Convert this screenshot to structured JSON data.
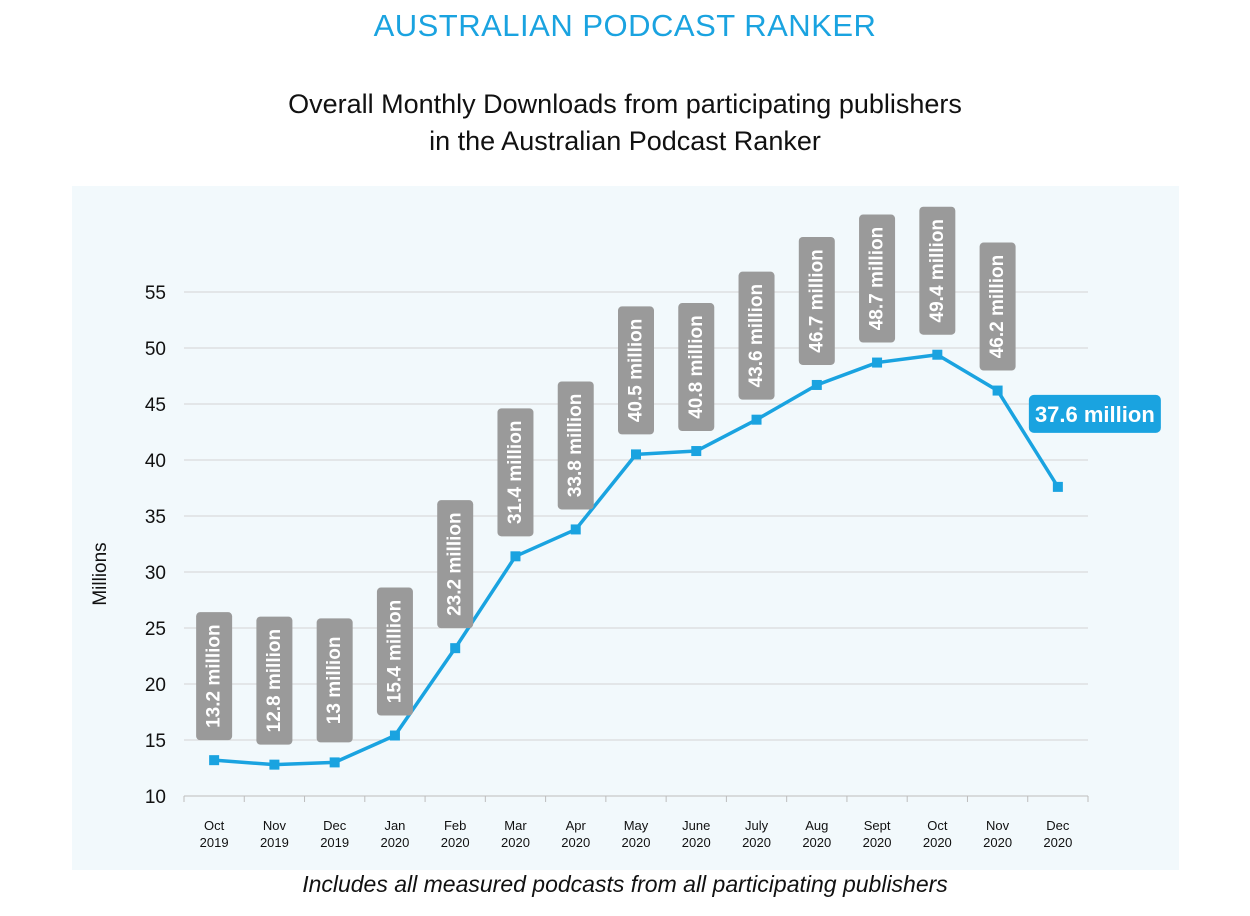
{
  "header": {
    "brand": "AUSTRALIAN PODCAST RANKER",
    "subtitle_line1": "Overall Monthly Downloads from participating publishers",
    "subtitle_line2": "in the Australian Podcast Ranker"
  },
  "footnote": "Includes all measured podcasts from all participating publishers",
  "colors": {
    "line": "#1aa3e0",
    "label_box": "#9a9a9a",
    "highlight_box": "#1aa3e0",
    "panel_bg": "#f2f9fc",
    "grid": "#d4d4d4"
  },
  "chart_data": {
    "type": "line",
    "title": "Overall Monthly Downloads from participating publishers in the Australian Podcast Ranker",
    "ylabel": "Millions",
    "xlabel": "",
    "ylim": [
      10,
      55
    ],
    "yticks": [
      10,
      15,
      20,
      25,
      30,
      35,
      40,
      45,
      50,
      55
    ],
    "grid": true,
    "categories": [
      [
        "Oct",
        "2019"
      ],
      [
        "Nov",
        "2019"
      ],
      [
        "Dec",
        "2019"
      ],
      [
        "Jan",
        "2020"
      ],
      [
        "Feb",
        "2020"
      ],
      [
        "Mar",
        "2020"
      ],
      [
        "Apr",
        "2020"
      ],
      [
        "May",
        "2020"
      ],
      [
        "June",
        "2020"
      ],
      [
        "July",
        "2020"
      ],
      [
        "Aug",
        "2020"
      ],
      [
        "Sept",
        "2020"
      ],
      [
        "Oct",
        "2020"
      ],
      [
        "Nov",
        "2020"
      ],
      [
        "Dec",
        "2020"
      ]
    ],
    "series": [
      {
        "values": [
          13.2,
          12.8,
          13,
          15.4,
          23.2,
          31.4,
          33.8,
          40.5,
          40.8,
          43.6,
          46.7,
          48.7,
          49.4,
          46.2,
          37.6
        ],
        "data_labels": [
          "13.2 million",
          "12.8 million",
          "13 million",
          "15.4 million",
          "23.2 million",
          "31.4 million",
          "33.8 million",
          "40.5 million",
          "40.8 million",
          "43.6 million",
          "46.7 million",
          "48.7 million",
          "49.4 million",
          "46.2 million",
          "37.6 million"
        ]
      }
    ],
    "highlight_index": 14
  }
}
